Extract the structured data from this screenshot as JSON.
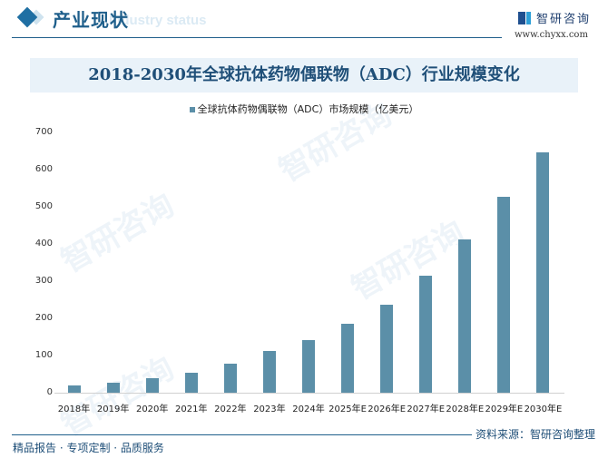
{
  "header": {
    "section_title": "产业现状",
    "section_subtitle": "Industry status",
    "logo_name": "智研咨询",
    "logo_url": "www.chyxx.com"
  },
  "footer": {
    "left": "精品报告 · 专项定制 · 品质服务",
    "right": "资料来源：智研咨询整理"
  },
  "chart_data": {
    "type": "bar",
    "title": "2018-2030年全球抗体药物偶联物（ADC）行业规模变化",
    "legend": [
      "全球抗体药物偶联物（ADC）市场规模（亿美元）"
    ],
    "legend_position": "top",
    "xlabel": "",
    "ylabel": "",
    "ylim": [
      0,
      700
    ],
    "yticks": [
      0,
      100,
      200,
      300,
      400,
      500,
      600,
      700
    ],
    "grid": false,
    "categories": [
      "2018年",
      "2019年",
      "2020年",
      "2021年",
      "2022年",
      "2023年",
      "2024年",
      "2025年E",
      "2026年E",
      "2027年E",
      "2028年E",
      "2029年E",
      "2030年E"
    ],
    "series": [
      {
        "name": "全球抗体药物偶联物（ADC）市场规模（亿美元）",
        "color": "#5b8fa8",
        "values": [
          20,
          27,
          39,
          54,
          78,
          112,
          141,
          185,
          237,
          315,
          412,
          527,
          646
        ]
      }
    ]
  }
}
